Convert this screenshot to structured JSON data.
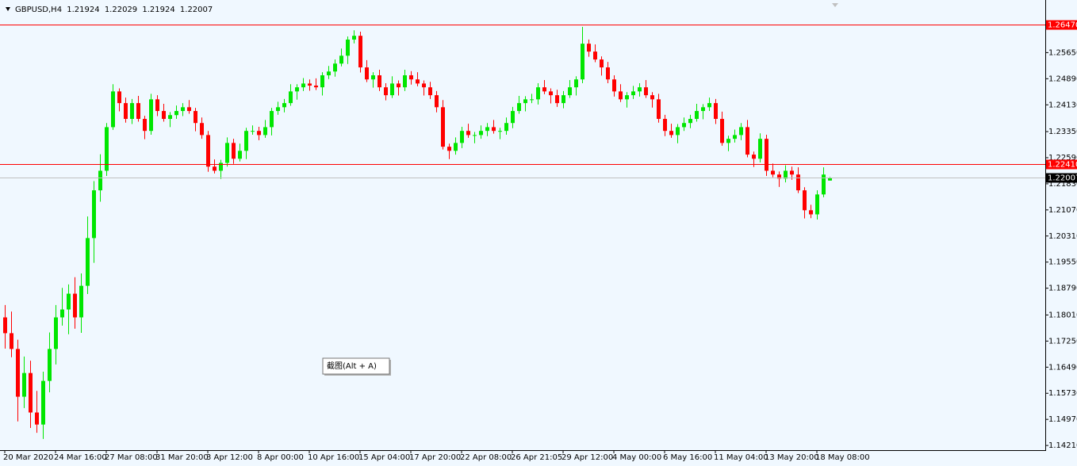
{
  "chart_data": {
    "type": "candlestick",
    "title": "GBPUSD,H4",
    "tooltip": "截图(Alt + A)",
    "up_color": "#00e600",
    "down_color": "#ff0000",
    "grid": false,
    "ylim": [
      1.1412,
      1.2709
    ],
    "yticks": [
      {
        "value": 1.2565,
        "label": "1.25650"
      },
      {
        "value": 1.2489,
        "label": "1.24890"
      },
      {
        "value": 1.2413,
        "label": "1.24130"
      },
      {
        "value": 1.2335,
        "label": "1.23350"
      },
      {
        "value": 1.2259,
        "label": "1.22590"
      },
      {
        "value": 1.2183,
        "label": "1.21830"
      },
      {
        "value": 1.2107,
        "label": "1.21070"
      },
      {
        "value": 1.2031,
        "label": "1.20310"
      },
      {
        "value": 1.1955,
        "label": "1.19550"
      },
      {
        "value": 1.1879,
        "label": "1.18790"
      },
      {
        "value": 1.1801,
        "label": "1.18010"
      },
      {
        "value": 1.1725,
        "label": "1.17250"
      },
      {
        "value": 1.1649,
        "label": "1.16490"
      },
      {
        "value": 1.1573,
        "label": "1.15730"
      },
      {
        "value": 1.1497,
        "label": "1.14970"
      },
      {
        "value": 1.1421,
        "label": "1.14210"
      }
    ],
    "lines": [
      {
        "value": 1.2647,
        "label": "1.26470",
        "color": "#ff0000",
        "box_color": "#ff0000"
      },
      {
        "value": 1.2241,
        "label": "1.22410",
        "color": "#ff0000",
        "box_color": "#ff0000"
      },
      {
        "value": 1.22007,
        "color": "#c0c0c0",
        "box_color": "#000000"
      }
    ],
    "categories": [
      "20 Mar 2020",
      null,
      null,
      null,
      null,
      null,
      null,
      null,
      "24 Mar 16:00",
      null,
      null,
      null,
      null,
      null,
      null,
      null,
      "27 Mar 08:00",
      null,
      null,
      null,
      null,
      null,
      null,
      null,
      "31 Mar 20:00",
      null,
      null,
      null,
      null,
      null,
      null,
      null,
      "3 Apr 12:00",
      null,
      null,
      null,
      null,
      null,
      null,
      null,
      "8 Apr 00:00",
      null,
      null,
      null,
      null,
      null,
      null,
      null,
      "10 Apr 16:00",
      null,
      null,
      null,
      null,
      null,
      null,
      null,
      "15 Apr 04:00",
      null,
      null,
      null,
      null,
      null,
      null,
      null,
      "17 Apr 20:00",
      null,
      null,
      null,
      null,
      null,
      null,
      null,
      "22 Apr 08:00",
      null,
      null,
      null,
      null,
      null,
      null,
      null,
      "26 Apr 21:05",
      null,
      null,
      null,
      null,
      null,
      null,
      null,
      "29 Apr 12:00",
      null,
      null,
      null,
      null,
      null,
      null,
      null,
      "4 May 00:00",
      null,
      null,
      null,
      null,
      null,
      null,
      null,
      "6 May 16:00",
      null,
      null,
      null,
      null,
      null,
      null,
      null,
      "11 May 04:00",
      null,
      null,
      null,
      null,
      null,
      null,
      null,
      "13 May 20:00",
      null,
      null,
      null,
      null,
      null,
      null,
      null,
      "18 May 08:00",
      null,
      null
    ],
    "open": [
      1.1794,
      1.1748,
      1.1702,
      1.1563,
      1.1632,
      1.1517,
      1.1482,
      1.1609,
      1.1702,
      1.1794,
      1.1817,
      1.1863,
      1.1794,
      1.1886,
      1.2025,
      1.2164,
      1.2221,
      1.2348,
      1.2452,
      1.2418,
      1.2372,
      1.2418,
      1.2372,
      1.2337,
      1.2429,
      1.2395,
      1.2372,
      1.2383,
      1.2395,
      1.2406,
      1.2395,
      1.236,
      1.2325,
      1.2233,
      1.2221,
      1.2244,
      1.2302,
      1.2256,
      1.2279,
      1.2337,
      1.2337,
      1.2325,
      1.2348,
      1.2395,
      1.2406,
      1.2418,
      1.2452,
      1.2464,
      1.2475,
      1.2469,
      1.2464,
      1.2499,
      1.251,
      1.2533,
      1.2556,
      1.2603,
      1.2614,
      1.2522,
      1.2487,
      1.2499,
      1.2464,
      1.2441,
      1.2475,
      1.2464,
      1.2499,
      1.2487,
      1.2475,
      1.2464,
      1.2441,
      1.2406,
      1.2291,
      1.2279,
      1.2302,
      1.2337,
      1.2325,
      1.2325,
      1.2337,
      1.2348,
      1.2337,
      1.2337,
      1.236,
      1.2395,
      1.2418,
      1.2429,
      1.2429,
      1.2464,
      1.2452,
      1.2441,
      1.2418,
      1.2441,
      1.2464,
      1.2487,
      1.2591,
      1.2568,
      1.2545,
      1.2522,
      1.2487,
      1.2452,
      1.2429,
      1.2441,
      1.2452,
      1.2464,
      1.2441,
      1.2429,
      1.2372,
      1.2337,
      1.2325,
      1.2348,
      1.236,
      1.2372,
      1.2395,
      1.2406,
      1.2418,
      1.2372,
      1.2302,
      1.2314,
      1.2325,
      1.2348,
      1.2268,
      1.2256,
      1.2314,
      1.2221,
      1.221,
      1.2198,
      1.2221,
      1.221,
      1.2164,
      1.2106,
      1.2094,
      1.2152,
      1.21924
    ],
    "high": [
      1.183,
      1.1811,
      1.1729,
      1.168,
      1.1668,
      1.158,
      1.1636,
      1.175,
      1.183,
      1.188,
      1.189,
      1.1911,
      1.1922,
      1.2088,
      1.2191,
      1.2269,
      1.236,
      1.2473,
      1.2461,
      1.2434,
      1.243,
      1.2439,
      1.2381,
      1.2445,
      1.2441,
      1.2416,
      1.2392,
      1.2411,
      1.2418,
      1.2427,
      1.2404,
      1.2376,
      1.2337,
      1.2254,
      1.2253,
      1.2318,
      1.2314,
      1.23,
      1.2346,
      1.2353,
      1.2349,
      1.2369,
      1.2404,
      1.2422,
      1.243,
      1.2473,
      1.2473,
      1.2491,
      1.2487,
      1.249,
      1.2508,
      1.2526,
      1.2545,
      1.2577,
      1.2612,
      1.263,
      1.2626,
      1.2543,
      1.2508,
      1.2515,
      1.2476,
      1.2496,
      1.2484,
      1.2515,
      1.2511,
      1.2508,
      1.2484,
      1.248,
      1.2453,
      1.2427,
      1.23,
      1.2318,
      1.2349,
      1.2358,
      1.2334,
      1.2353,
      1.236,
      1.2369,
      1.2346,
      1.2376,
      1.2407,
      1.2439,
      1.2438,
      1.2445,
      1.2476,
      1.2485,
      1.2461,
      1.2457,
      1.2453,
      1.2485,
      1.2496,
      1.264,
      1.2603,
      1.2589,
      1.2554,
      1.2538,
      1.2499,
      1.2473,
      1.245,
      1.2468,
      1.2476,
      1.2485,
      1.245,
      1.2445,
      1.2384,
      1.2358,
      1.2357,
      1.2376,
      1.2384,
      1.2416,
      1.2415,
      1.2434,
      1.243,
      1.2393,
      1.2323,
      1.2341,
      1.236,
      1.2369,
      1.2277,
      1.233,
      1.2326,
      1.2242,
      1.2219,
      1.2237,
      1.2233,
      1.2231,
      1.2173,
      1.2122,
      1.2164,
      1.2231,
      1.22029
    ],
    "low": [
      1.1703,
      1.1678,
      1.1491,
      1.153,
      1.1472,
      1.1458,
      1.144,
      1.1576,
      1.1657,
      1.177,
      1.1745,
      1.1761,
      1.1749,
      1.1862,
      1.1953,
      1.2131,
      1.2206,
      1.234,
      1.2394,
      1.2361,
      1.2357,
      1.2364,
      1.2313,
      1.2326,
      1.238,
      1.2364,
      1.2348,
      1.2372,
      1.238,
      1.2387,
      1.2336,
      1.2314,
      1.2218,
      1.2213,
      1.2197,
      1.2233,
      1.2241,
      1.2248,
      1.2255,
      1.2326,
      1.231,
      1.2317,
      1.2324,
      1.2384,
      1.2391,
      1.241,
      1.2428,
      1.2453,
      1.2454,
      1.2456,
      1.244,
      1.2488,
      1.2495,
      1.2525,
      1.2532,
      1.2592,
      1.2507,
      1.2479,
      1.2463,
      1.2453,
      1.2426,
      1.2433,
      1.244,
      1.2453,
      1.2472,
      1.2467,
      1.244,
      1.243,
      1.2391,
      1.2283,
      1.2255,
      1.2268,
      1.2287,
      1.2317,
      1.2301,
      1.2314,
      1.2322,
      1.2329,
      1.2313,
      1.2326,
      1.2345,
      1.2387,
      1.2394,
      1.2418,
      1.2414,
      1.2444,
      1.2417,
      1.2407,
      1.2403,
      1.2433,
      1.244,
      1.2476,
      1.2553,
      1.2537,
      1.2498,
      1.2476,
      1.2437,
      1.2421,
      1.2405,
      1.243,
      1.2437,
      1.2433,
      1.2405,
      1.2361,
      1.2322,
      1.2317,
      1.2301,
      1.2337,
      1.2345,
      1.2364,
      1.2371,
      1.2395,
      1.2357,
      1.2294,
      1.2278,
      1.2303,
      1.231,
      1.226,
      1.2232,
      1.2245,
      1.2206,
      1.2202,
      1.2174,
      1.2187,
      1.2195,
      1.2156,
      1.2082,
      1.2083,
      1.2079,
      1.2144,
      1.21924
    ],
    "close": [
      1.1748,
      1.1702,
      1.1563,
      1.1632,
      1.1517,
      1.1482,
      1.1609,
      1.1702,
      1.1794,
      1.1817,
      1.1863,
      1.1794,
      1.1886,
      1.2025,
      1.2164,
      1.2221,
      1.2348,
      1.2452,
      1.2418,
      1.2372,
      1.2418,
      1.2372,
      1.2337,
      1.2429,
      1.2395,
      1.2372,
      1.2383,
      1.2395,
      1.2406,
      1.2395,
      1.236,
      1.2325,
      1.2233,
      1.2221,
      1.2244,
      1.2302,
      1.2256,
      1.2279,
      1.2337,
      1.2337,
      1.2325,
      1.2348,
      1.2395,
      1.2406,
      1.2418,
      1.2452,
      1.2464,
      1.2475,
      1.2469,
      1.2464,
      1.2499,
      1.251,
      1.2533,
      1.2556,
      1.2603,
      1.2614,
      1.2522,
      1.2487,
      1.2499,
      1.2464,
      1.2441,
      1.2475,
      1.2464,
      1.2499,
      1.2487,
      1.2475,
      1.2464,
      1.2441,
      1.2406,
      1.2291,
      1.2279,
      1.2302,
      1.2337,
      1.2325,
      1.2325,
      1.2337,
      1.2348,
      1.2337,
      1.2337,
      1.236,
      1.2395,
      1.2418,
      1.2429,
      1.2429,
      1.2464,
      1.2452,
      1.2441,
      1.2418,
      1.2441,
      1.2464,
      1.2487,
      1.2591,
      1.2568,
      1.2545,
      1.2522,
      1.2487,
      1.2452,
      1.2429,
      1.2441,
      1.2452,
      1.2464,
      1.2441,
      1.2429,
      1.2372,
      1.2337,
      1.2325,
      1.2348,
      1.236,
      1.2372,
      1.2395,
      1.2406,
      1.2418,
      1.2372,
      1.2302,
      1.2314,
      1.2325,
      1.2348,
      1.2268,
      1.2256,
      1.2314,
      1.2221,
      1.221,
      1.2198,
      1.2221,
      1.221,
      1.2164,
      1.2106,
      1.2094,
      1.2152,
      1.221,
      1.22007
    ]
  }
}
